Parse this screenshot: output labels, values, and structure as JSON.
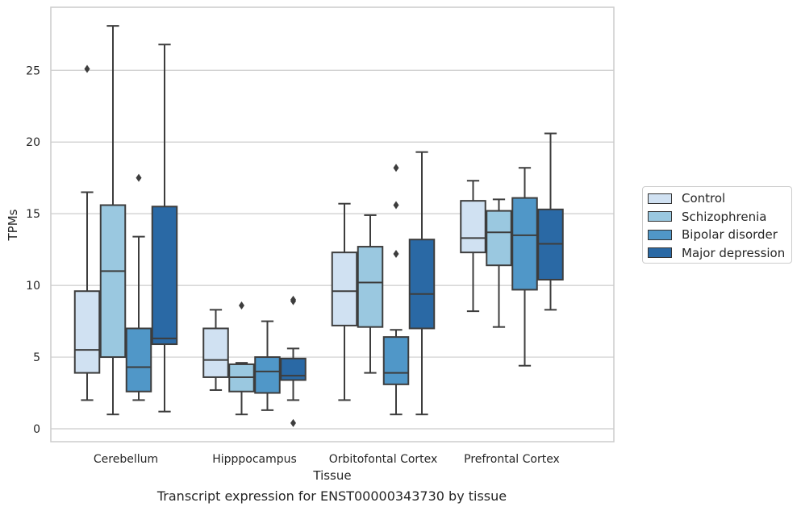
{
  "chart_data": {
    "type": "box",
    "xlabel": "Tissue",
    "ylabel": "TPMs",
    "ylim": [
      -0.9,
      29.4
    ],
    "yticks": [
      0,
      5,
      10,
      15,
      20,
      25
    ],
    "grid": "horizontal",
    "legend_position": "right",
    "categories": [
      "Cerebellum",
      "Hipppocampus",
      "Orbitofontal Cortex",
      "Prefrontal Cortex"
    ],
    "series": [
      {
        "name": "Control",
        "color": "#d0e1f2",
        "boxes": [
          {
            "min": 2.0,
            "q1": 3.9,
            "median": 5.5,
            "q3": 9.6,
            "max": 16.5,
            "outliers": [
              25.1
            ]
          },
          {
            "min": 2.7,
            "q1": 3.6,
            "median": 4.8,
            "q3": 7.0,
            "max": 8.3,
            "outliers": []
          },
          {
            "min": 2.0,
            "q1": 7.2,
            "median": 9.6,
            "q3": 12.3,
            "max": 15.7,
            "outliers": []
          },
          {
            "min": 8.2,
            "q1": 12.3,
            "median": 13.3,
            "q3": 15.9,
            "max": 17.3,
            "outliers": []
          }
        ]
      },
      {
        "name": "Schizophrenia",
        "color": "#9ac8e0",
        "boxes": [
          {
            "min": 1.0,
            "q1": 5.0,
            "median": 11.0,
            "q3": 15.6,
            "max": 28.1,
            "outliers": []
          },
          {
            "min": 1.0,
            "q1": 2.6,
            "median": 3.6,
            "q3": 4.5,
            "max": 4.6,
            "outliers": [
              8.6
            ]
          },
          {
            "min": 3.9,
            "q1": 7.1,
            "median": 10.2,
            "q3": 12.7,
            "max": 14.9,
            "outliers": []
          },
          {
            "min": 7.1,
            "q1": 11.4,
            "median": 13.7,
            "q3": 15.2,
            "max": 16.0,
            "outliers": []
          }
        ]
      },
      {
        "name": "Bipolar disorder",
        "color": "#5097c8",
        "boxes": [
          {
            "min": 2.0,
            "q1": 2.6,
            "median": 4.3,
            "q3": 7.0,
            "max": 13.4,
            "outliers": [
              17.5
            ]
          },
          {
            "min": 1.3,
            "q1": 2.5,
            "median": 4.0,
            "q3": 5.0,
            "max": 7.5,
            "outliers": []
          },
          {
            "min": 1.0,
            "q1": 3.1,
            "median": 3.9,
            "q3": 6.4,
            "max": 6.9,
            "outliers": [
              12.2,
              15.6,
              18.2
            ]
          },
          {
            "min": 4.4,
            "q1": 9.7,
            "median": 13.5,
            "q3": 16.1,
            "max": 18.2,
            "outliers": []
          }
        ]
      },
      {
        "name": "Major depression",
        "color": "#2a69a5",
        "boxes": [
          {
            "min": 1.2,
            "q1": 5.9,
            "median": 6.3,
            "q3": 15.5,
            "max": 26.8,
            "outliers": []
          },
          {
            "min": 2.0,
            "q1": 3.4,
            "median": 3.7,
            "q3": 4.9,
            "max": 5.6,
            "outliers": [
              0.4,
              8.9,
              9.0
            ]
          },
          {
            "min": 1.0,
            "q1": 7.0,
            "median": 9.4,
            "q3": 13.2,
            "max": 19.3,
            "outliers": []
          },
          {
            "min": 8.3,
            "q1": 10.4,
            "median": 12.9,
            "q3": 15.3,
            "max": 20.6,
            "outliers": []
          }
        ]
      }
    ]
  },
  "caption": "Transcript expression for ENST00000343730 by tissue"
}
